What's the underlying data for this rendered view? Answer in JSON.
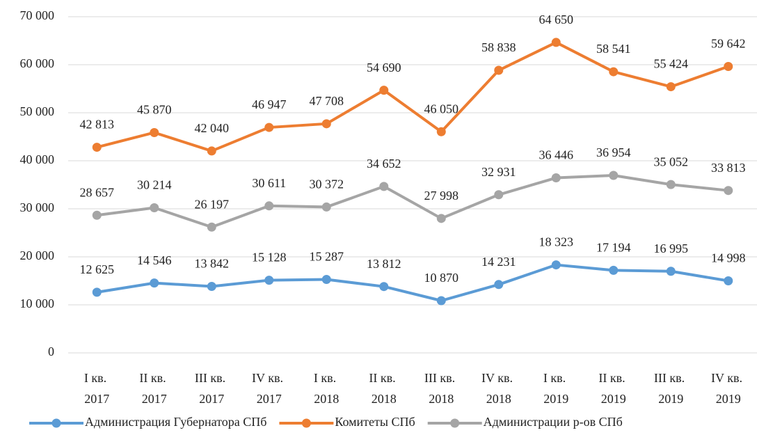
{
  "chart_data": {
    "type": "line",
    "categories": [
      "I кв. 2017",
      "II кв. 2017",
      "III кв. 2017",
      "IV кв. 2017",
      "I кв. 2018",
      "II кв. 2018",
      "III кв. 2018",
      "IV кв. 2018",
      "I кв. 2019",
      "II кв. 2019",
      "III кв. 2019",
      "IV кв. 2019"
    ],
    "series": [
      {
        "name": "Администрация Губернатора СПб",
        "color": "#5b9bd5",
        "values": [
          12625,
          14546,
          13842,
          15128,
          15287,
          13812,
          10870,
          14231,
          18323,
          17194,
          16995,
          14998
        ],
        "value_labels": [
          "12 625",
          "14 546",
          "13 842",
          "15 128",
          "15 287",
          "13 812",
          "10 870",
          "14 231",
          "18 323",
          "17 194",
          "16 995",
          "14 998"
        ]
      },
      {
        "name": "Комитеты СПб",
        "color": "#ed7d31",
        "values": [
          42813,
          45870,
          42040,
          46947,
          47708,
          54690,
          46050,
          58838,
          64650,
          58541,
          55424,
          59642
        ],
        "value_labels": [
          "42 813",
          "45 870",
          "42 040",
          "46 947",
          "47 708",
          "54 690",
          "46 050",
          "58 838",
          "64 650",
          "58 541",
          "55 424",
          "59 642"
        ]
      },
      {
        "name": "Администрации р-ов СПб",
        "color": "#a5a5a5",
        "values": [
          28657,
          30214,
          26197,
          30611,
          30372,
          34652,
          27998,
          32931,
          36446,
          36954,
          35052,
          33813
        ],
        "value_labels": [
          "28 657",
          "30 214",
          "26 197",
          "30 611",
          "30 372",
          "34 652",
          "27 998",
          "32 931",
          "36 446",
          "36 954",
          "35 052",
          "33 813"
        ]
      }
    ],
    "ylim": [
      0,
      70000
    ],
    "yticks": [
      0,
      {
        "value": 10000,
        "label": "10 000"
      },
      {
        "value": 20000,
        "label": "20 000"
      },
      {
        "value": 30000,
        "label": "30 000"
      },
      {
        "value": 40000,
        "label": "40 000"
      },
      {
        "value": 50000,
        "label": "50 000"
      },
      {
        "value": 60000,
        "label": "60 000"
      },
      {
        "value": 70000,
        "label": "70 000"
      }
    ],
    "grid": true,
    "legend": "bottom"
  }
}
